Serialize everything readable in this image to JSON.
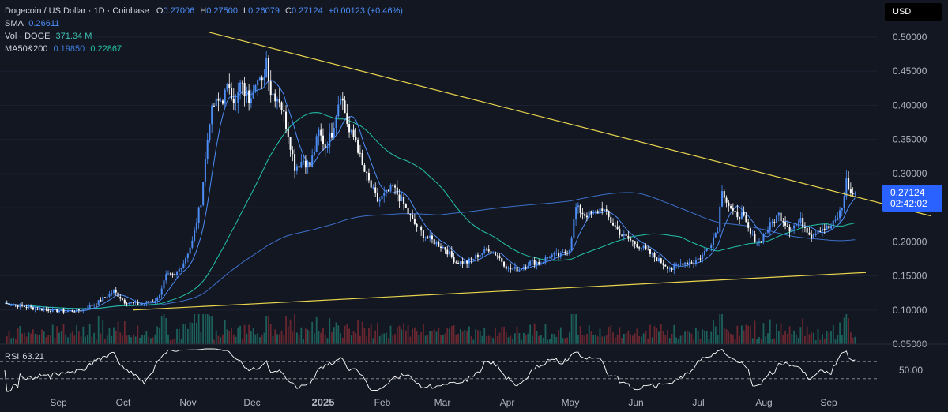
{
  "legend": {
    "symbol": "Dogecoin / US Dollar · 1D · Coinbase",
    "o_label": "O",
    "o_val": "0.27006",
    "h_label": "H",
    "h_val": "0.27500",
    "l_label": "L",
    "l_val": "0.26079",
    "c_label": "C",
    "c_val": "0.27124",
    "change": "+0.00123 (+0.46%)",
    "sma_label": "SMA",
    "sma_val": "0.26611",
    "vol_label": "Vol · DOGE",
    "vol_val": "371.34 M",
    "ma_label": "MA50&200",
    "ma50_val": "0.19850",
    "ma200_val": "0.22867"
  },
  "axis": {
    "currency": "USD"
  },
  "last_price": {
    "value": "0.27124",
    "countdown": "02:42:02"
  },
  "rsi": {
    "label": "RSI",
    "value": "63.21"
  },
  "colors": {
    "background": "#131722",
    "up": "#4c8df6",
    "down": "#ffffff",
    "trendline": "#e8d44d",
    "ma50": "#22c3a8",
    "ma200": "#3d6fc9",
    "sma": "#4c8df6",
    "rsi": "#ffffff",
    "price_tag": "#2962ff"
  },
  "chart_data": {
    "type": "candlestick",
    "price_ticks": [
      "0.50000",
      "0.45000",
      "0.40000",
      "0.35000",
      "0.30000",
      "0.25000",
      "0.20000",
      "0.15000",
      "0.10000",
      "0.05000"
    ],
    "price_tick_values": [
      0.5,
      0.45,
      0.4,
      0.35,
      0.3,
      0.25,
      0.2,
      0.15,
      0.1,
      0.05
    ],
    "ylim": [
      0.05,
      0.5
    ],
    "x_ticks": [
      "Sep",
      "Oct",
      "Nov",
      "Dec",
      "2025",
      "Feb",
      "Mar",
      "Apr",
      "May",
      "Jun",
      "Jul",
      "Aug",
      "Sep"
    ],
    "rsi_ticks": [
      "50.00"
    ],
    "rsi_bands": [
      70,
      30
    ],
    "anchors": [
      [
        0,
        0.11
      ],
      [
        14,
        0.102
      ],
      [
        28,
        0.098
      ],
      [
        35,
        0.1
      ],
      [
        42,
        0.11
      ],
      [
        50,
        0.128
      ],
      [
        55,
        0.112
      ],
      [
        62,
        0.108
      ],
      [
        70,
        0.116
      ],
      [
        74,
        0.15
      ],
      [
        78,
        0.15
      ],
      [
        82,
        0.17
      ],
      [
        86,
        0.2
      ],
      [
        90,
        0.26
      ],
      [
        94,
        0.38
      ],
      [
        96,
        0.4
      ],
      [
        100,
        0.41
      ],
      [
        103,
        0.43
      ],
      [
        106,
        0.4
      ],
      [
        108,
        0.43
      ],
      [
        112,
        0.41
      ],
      [
        115,
        0.44
      ],
      [
        118,
        0.43
      ],
      [
        120,
        0.47
      ],
      [
        122,
        0.42
      ],
      [
        126,
        0.41
      ],
      [
        130,
        0.36
      ],
      [
        133,
        0.31
      ],
      [
        137,
        0.32
      ],
      [
        140,
        0.31
      ],
      [
        144,
        0.36
      ],
      [
        147,
        0.34
      ],
      [
        150,
        0.36
      ],
      [
        154,
        0.42
      ],
      [
        158,
        0.36
      ],
      [
        161,
        0.35
      ],
      [
        164,
        0.31
      ],
      [
        168,
        0.28
      ],
      [
        171,
        0.26
      ],
      [
        175,
        0.27
      ],
      [
        178,
        0.28
      ],
      [
        182,
        0.26
      ],
      [
        187,
        0.23
      ],
      [
        192,
        0.21
      ],
      [
        197,
        0.2
      ],
      [
        202,
        0.19
      ],
      [
        207,
        0.17
      ],
      [
        212,
        0.17
      ],
      [
        217,
        0.18
      ],
      [
        222,
        0.19
      ],
      [
        226,
        0.18
      ],
      [
        231,
        0.16
      ],
      [
        236,
        0.16
      ],
      [
        241,
        0.17
      ],
      [
        246,
        0.17
      ],
      [
        250,
        0.18
      ],
      [
        255,
        0.18
      ],
      [
        259,
        0.19
      ],
      [
        262,
        0.25
      ],
      [
        266,
        0.24
      ],
      [
        270,
        0.24
      ],
      [
        274,
        0.25
      ],
      [
        278,
        0.23
      ],
      [
        283,
        0.21
      ],
      [
        288,
        0.2
      ],
      [
        293,
        0.19
      ],
      [
        297,
        0.18
      ],
      [
        301,
        0.17
      ],
      [
        306,
        0.16
      ],
      [
        311,
        0.17
      ],
      [
        316,
        0.17
      ],
      [
        320,
        0.18
      ],
      [
        324,
        0.2
      ],
      [
        327,
        0.22
      ],
      [
        329,
        0.28
      ],
      [
        331,
        0.26
      ],
      [
        334,
        0.24
      ],
      [
        338,
        0.24
      ],
      [
        342,
        0.21
      ],
      [
        346,
        0.2
      ],
      [
        350,
        0.22
      ],
      [
        355,
        0.24
      ],
      [
        360,
        0.22
      ],
      [
        365,
        0.23
      ],
      [
        370,
        0.21
      ],
      [
        374,
        0.22
      ],
      [
        378,
        0.22
      ],
      [
        381,
        0.23
      ],
      [
        384,
        0.25
      ],
      [
        386,
        0.29
      ],
      [
        388,
        0.27
      ],
      [
        390,
        0.271
      ]
    ],
    "upper_trendline": [
      [
        0,
        0.507
      ],
      [
        390,
        0.238
      ]
    ],
    "lower_trendline": [
      [
        57,
        0.1
      ],
      [
        390,
        0.155
      ]
    ]
  }
}
